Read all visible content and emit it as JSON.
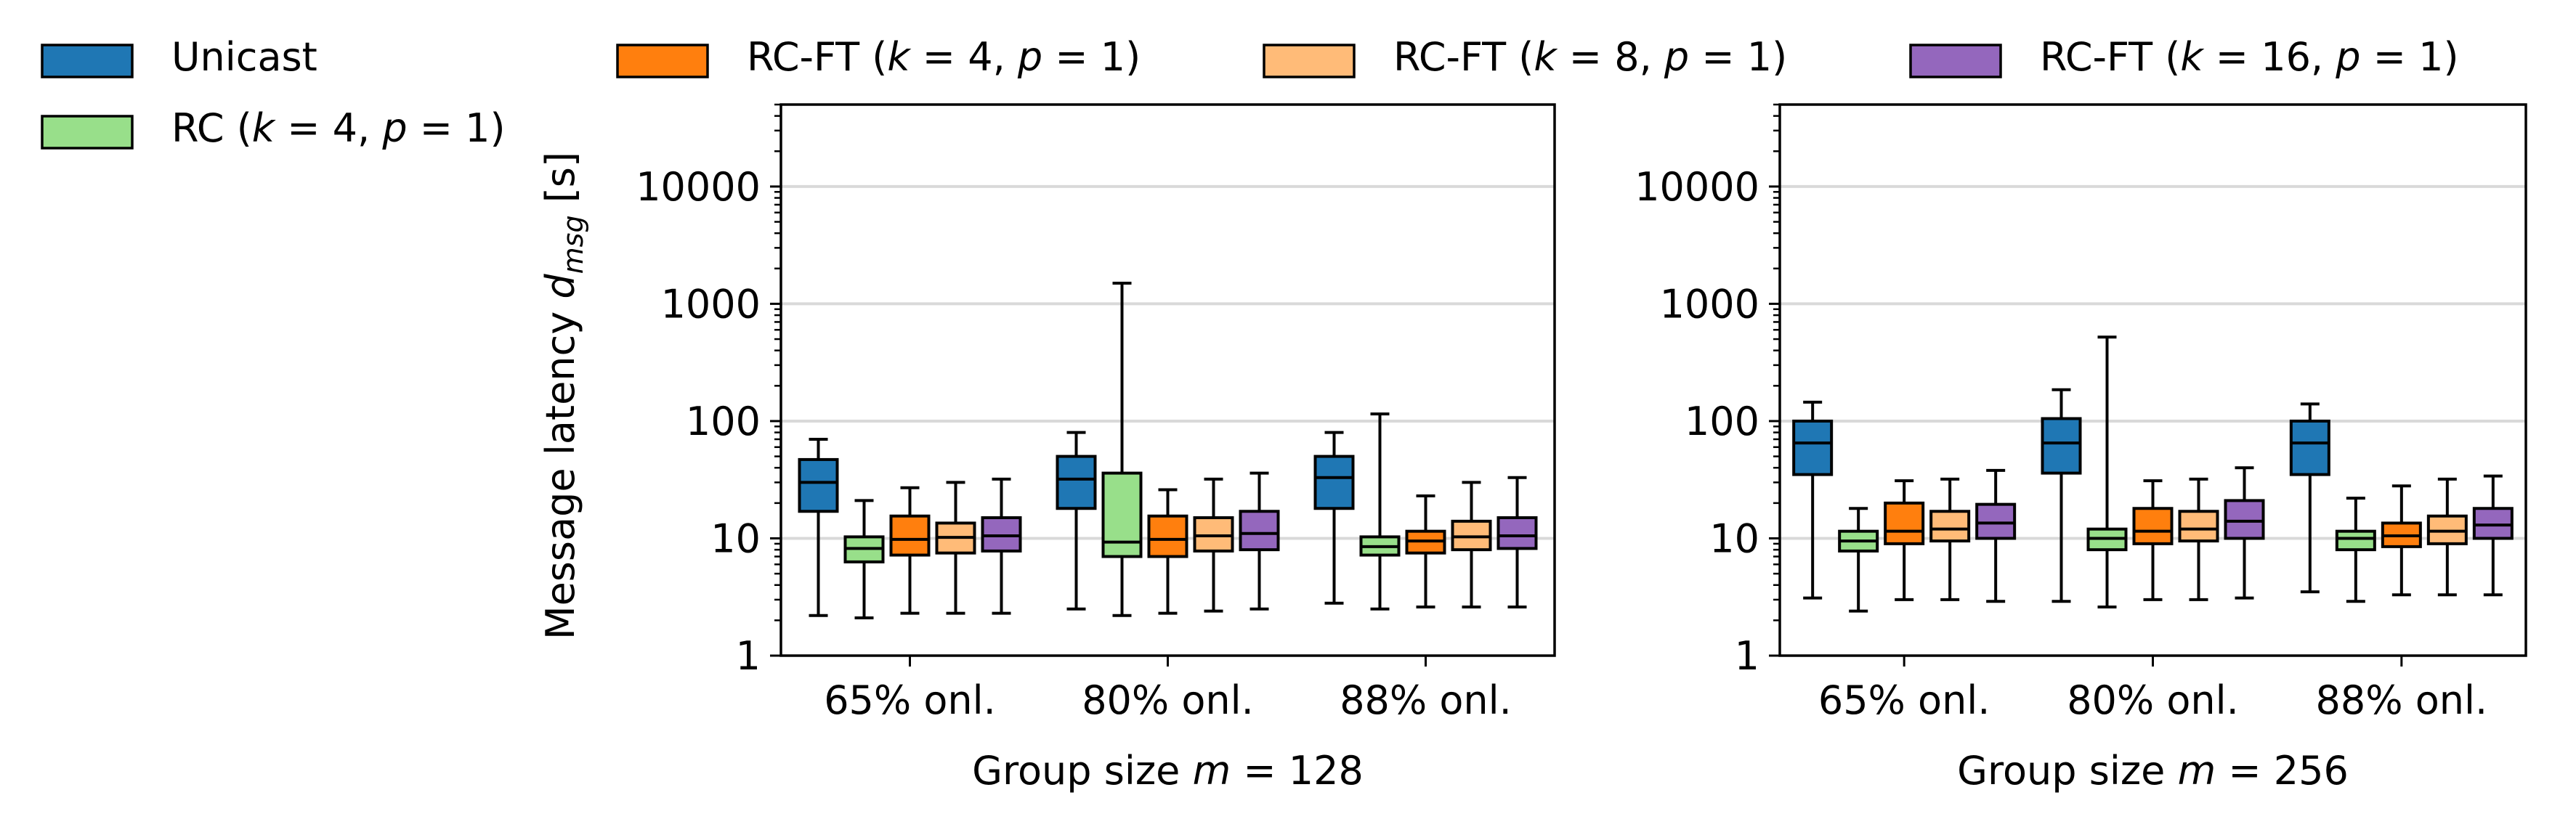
{
  "chart_data": {
    "type": "box",
    "yscale": "log",
    "ylim": [
      1,
      50000
    ],
    "yticks": [
      1,
      10,
      100,
      1000,
      10000
    ],
    "ytick_labels": [
      "1",
      "10",
      "100",
      "1000",
      "10000"
    ],
    "ylabel_main": "Message latency ",
    "ylabel_symbol": "d",
    "ylabel_sub": "msg",
    "ylabel_unit": " [s]",
    "grid": "horizontal",
    "legend_position": "top",
    "categories": [
      "65% onl.",
      "80% onl.",
      "88% onl."
    ],
    "series": [
      {
        "key": "unicast",
        "label": "Unicast",
        "color": "#1f77b4"
      },
      {
        "key": "rc",
        "label": "RC (k = 4, p = 1)",
        "color": "#98df8a"
      },
      {
        "key": "rcft4",
        "label": "RC-FT (k = 4, p = 1)",
        "color": "#ff7f0e"
      },
      {
        "key": "rcft8",
        "label": "RC-FT (k = 8, p = 1)",
        "color": "#ffbb78"
      },
      {
        "key": "rcft16",
        "label": "RC-FT (k = 16, p = 1)",
        "color": "#9467bd"
      }
    ],
    "panels": [
      {
        "xlabel": "Group size m = 128",
        "boxes": [
          [
            {
              "whislo": 2.2,
              "q1": 17,
              "med": 30,
              "q3": 47,
              "whishi": 70
            },
            {
              "whislo": 2.1,
              "q1": 6.3,
              "med": 8.2,
              "q3": 10.3,
              "whishi": 21
            },
            {
              "whislo": 2.3,
              "q1": 7.2,
              "med": 9.8,
              "q3": 15.5,
              "whishi": 27
            },
            {
              "whislo": 2.3,
              "q1": 7.5,
              "med": 10.2,
              "q3": 13.5,
              "whishi": 30
            },
            {
              "whislo": 2.3,
              "q1": 7.8,
              "med": 10.5,
              "q3": 15,
              "whishi": 32
            }
          ],
          [
            {
              "whislo": 2.5,
              "q1": 18,
              "med": 32,
              "q3": 50,
              "whishi": 80
            },
            {
              "whislo": 2.2,
              "q1": 7,
              "med": 9.3,
              "q3": 36,
              "whishi": 1500
            },
            {
              "whislo": 2.3,
              "q1": 7,
              "med": 9.8,
              "q3": 15.5,
              "whishi": 26
            },
            {
              "whislo": 2.4,
              "q1": 7.8,
              "med": 10.5,
              "q3": 15,
              "whishi": 32
            },
            {
              "whislo": 2.5,
              "q1": 8,
              "med": 11,
              "q3": 17,
              "whishi": 36
            }
          ],
          [
            {
              "whislo": 2.8,
              "q1": 18,
              "med": 33,
              "q3": 50,
              "whishi": 80
            },
            {
              "whislo": 2.5,
              "q1": 7.2,
              "med": 8.5,
              "q3": 10.3,
              "whishi": 115
            },
            {
              "whislo": 2.6,
              "q1": 7.5,
              "med": 9.5,
              "q3": 11.5,
              "whishi": 23
            },
            {
              "whislo": 2.6,
              "q1": 8,
              "med": 10.3,
              "q3": 14,
              "whishi": 30
            },
            {
              "whislo": 2.6,
              "q1": 8.2,
              "med": 10.5,
              "q3": 15,
              "whishi": 33
            }
          ]
        ]
      },
      {
        "xlabel": "Group size m = 256",
        "boxes": [
          [
            {
              "whislo": 3.1,
              "q1": 35,
              "med": 65,
              "q3": 100,
              "whishi": 145
            },
            {
              "whislo": 2.4,
              "q1": 7.8,
              "med": 9.5,
              "q3": 11.5,
              "whishi": 18
            },
            {
              "whislo": 3,
              "q1": 9,
              "med": 11.5,
              "q3": 20,
              "whishi": 31
            },
            {
              "whislo": 3,
              "q1": 9.5,
              "med": 12,
              "q3": 17,
              "whishi": 32
            },
            {
              "whislo": 2.9,
              "q1": 10,
              "med": 13.5,
              "q3": 19.5,
              "whishi": 38
            }
          ],
          [
            {
              "whislo": 2.9,
              "q1": 36,
              "med": 65,
              "q3": 105,
              "whishi": 185
            },
            {
              "whislo": 2.6,
              "q1": 8,
              "med": 10,
              "q3": 12,
              "whishi": 520
            },
            {
              "whislo": 3,
              "q1": 9,
              "med": 11.5,
              "q3": 18,
              "whishi": 31
            },
            {
              "whislo": 3,
              "q1": 9.5,
              "med": 12,
              "q3": 17,
              "whishi": 32
            },
            {
              "whislo": 3.1,
              "q1": 10,
              "med": 14,
              "q3": 21,
              "whishi": 40
            }
          ],
          [
            {
              "whislo": 3.5,
              "q1": 35,
              "med": 65,
              "q3": 100,
              "whishi": 140
            },
            {
              "whislo": 2.9,
              "q1": 8,
              "med": 10,
              "q3": 11.5,
              "whishi": 22
            },
            {
              "whislo": 3.3,
              "q1": 8.5,
              "med": 10.5,
              "q3": 13.5,
              "whishi": 28
            },
            {
              "whislo": 3.3,
              "q1": 9,
              "med": 11.5,
              "q3": 15.5,
              "whishi": 32
            },
            {
              "whislo": 3.3,
              "q1": 10,
              "med": 13,
              "q3": 18,
              "whishi": 34
            }
          ]
        ]
      }
    ]
  }
}
